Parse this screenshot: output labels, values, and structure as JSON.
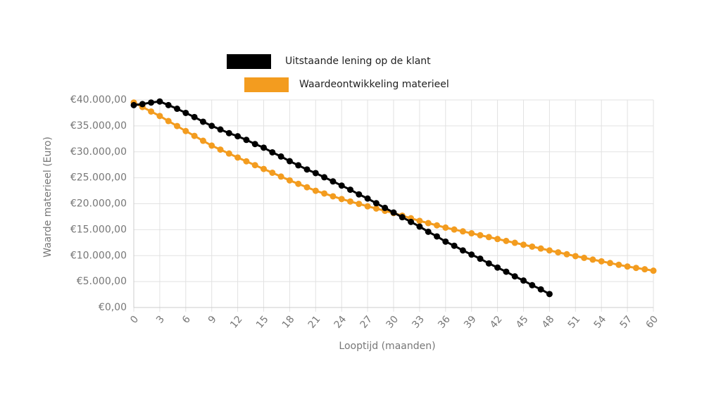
{
  "chart_data": {
    "type": "line",
    "x_label": "Looptijd (maanden)",
    "y_label": "Waarde materieel (Euro)",
    "x": [
      0,
      1,
      2,
      3,
      4,
      5,
      6,
      7,
      8,
      9,
      10,
      11,
      12,
      13,
      14,
      15,
      16,
      17,
      18,
      19,
      20,
      21,
      22,
      23,
      24,
      25,
      26,
      27,
      28,
      29,
      30,
      31,
      32,
      33,
      34,
      35,
      36,
      37,
      38,
      39,
      40,
      41,
      42,
      43,
      44,
      45,
      46,
      47,
      48,
      49,
      50,
      51,
      52,
      53,
      54,
      55,
      56,
      57,
      58,
      59,
      60
    ],
    "series": [
      {
        "name": "Uitstaande lening op de klant",
        "color": "#000000",
        "values": [
          39000,
          39200,
          39500,
          39700,
          39000,
          38300,
          37500,
          36700,
          35800,
          35000,
          34300,
          33600,
          33000,
          32300,
          31500,
          30800,
          29900,
          29100,
          28200,
          27400,
          26600,
          25900,
          25100,
          24300,
          23500,
          22700,
          21800,
          21000,
          20100,
          19200,
          18300,
          17400,
          16500,
          15600,
          14600,
          13700,
          12700,
          11900,
          11000,
          10200,
          9400,
          8500,
          7700,
          6900,
          6000,
          5200,
          4300,
          3500,
          2600,
          null,
          null,
          null,
          null,
          null,
          null,
          null,
          null,
          null,
          null,
          null,
          null
        ]
      },
      {
        "name": "Waardeontwikkeling materieel",
        "color": "#f39c1f",
        "values": [
          39500,
          38630,
          37770,
          36900,
          35930,
          34970,
          34000,
          33070,
          32130,
          31200,
          30430,
          29670,
          28900,
          28170,
          27430,
          26700,
          25970,
          25230,
          24500,
          23830,
          23170,
          22500,
          21970,
          21430,
          20900,
          20430,
          19970,
          19500,
          19070,
          18630,
          18200,
          17700,
          17200,
          16700,
          16270,
          15830,
          15400,
          15030,
          14670,
          14300,
          13930,
          13570,
          13200,
          12830,
          12470,
          12100,
          11730,
          11370,
          11000,
          10630,
          10270,
          9900,
          9570,
          9230,
          8900,
          8570,
          8230,
          7900,
          7630,
          7370,
          7100
        ]
      }
    ],
    "xlim": [
      0,
      60
    ],
    "xticks": [
      0,
      3,
      6,
      9,
      12,
      15,
      18,
      21,
      24,
      27,
      30,
      33,
      36,
      39,
      42,
      45,
      48,
      51,
      54,
      57,
      60
    ],
    "ylim": [
      0,
      40000
    ],
    "yticks": [
      {
        "value": 0,
        "label": "€0,00"
      },
      {
        "value": 5000,
        "label": "€5.000,00"
      },
      {
        "value": 10000,
        "label": "€10.000,00"
      },
      {
        "value": 15000,
        "label": "€15.000,00"
      },
      {
        "value": 20000,
        "label": "€20.000,00"
      },
      {
        "value": 25000,
        "label": "€25.000,00"
      },
      {
        "value": 30000,
        "label": "€30.000,00"
      },
      {
        "value": 35000,
        "label": "€35.000,00"
      },
      {
        "value": 40000,
        "label": "€40.000,00"
      }
    ],
    "grid": true
  }
}
